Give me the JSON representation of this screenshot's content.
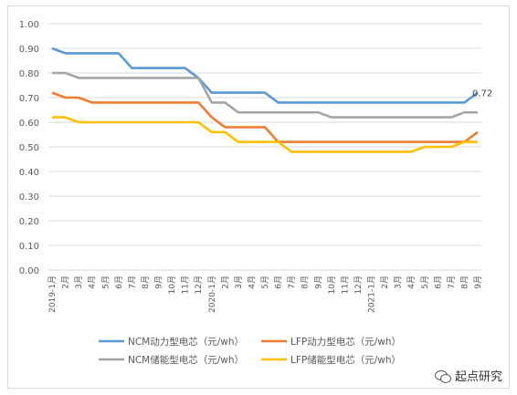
{
  "chart_data": {
    "type": "line",
    "title": "",
    "xlabel": "",
    "ylabel": "",
    "ylim": [
      0,
      1.0
    ],
    "yticks": [
      "0.00",
      "0.10",
      "0.20",
      "0.30",
      "0.40",
      "0.50",
      "0.60",
      "0.70",
      "0.80",
      "0.90",
      "1.00"
    ],
    "categories": [
      "2019-1月",
      "2月",
      "3月",
      "4月",
      "5月",
      "6月",
      "7月",
      "8月",
      "9月",
      "10月",
      "11月",
      "12月",
      "2020-1月",
      "2月",
      "3月",
      "4月",
      "5月",
      "6月",
      "7月",
      "8月",
      "9月",
      "10月",
      "11月",
      "12月",
      "2021-1月",
      "2月",
      "3月",
      "4月",
      "5月",
      "6月",
      "7月",
      "8月",
      "9月"
    ],
    "grid": true,
    "legend_position": "bottom",
    "series": [
      {
        "name": "NCM动力型电芯（元/wh）",
        "color": "#5b9bd5",
        "values": [
          0.9,
          0.88,
          0.88,
          0.88,
          0.88,
          0.88,
          0.82,
          0.82,
          0.82,
          0.82,
          0.82,
          0.78,
          0.72,
          0.72,
          0.72,
          0.72,
          0.72,
          0.68,
          0.68,
          0.68,
          0.68,
          0.68,
          0.68,
          0.68,
          0.68,
          0.68,
          0.68,
          0.68,
          0.68,
          0.68,
          0.68,
          0.68,
          0.72
        ]
      },
      {
        "name": "LFP动力型电芯（元/wh）",
        "color": "#ed7d31",
        "values": [
          0.72,
          0.7,
          0.7,
          0.68,
          0.68,
          0.68,
          0.68,
          0.68,
          0.68,
          0.68,
          0.68,
          0.68,
          0.62,
          0.58,
          0.58,
          0.58,
          0.58,
          0.52,
          0.52,
          0.52,
          0.52,
          0.52,
          0.52,
          0.52,
          0.52,
          0.52,
          0.52,
          0.52,
          0.52,
          0.52,
          0.52,
          0.52,
          0.56
        ]
      },
      {
        "name": "NCM储能型电芯（元/wh）",
        "color": "#a5a5a5",
        "values": [
          0.8,
          0.8,
          0.78,
          0.78,
          0.78,
          0.78,
          0.78,
          0.78,
          0.78,
          0.78,
          0.78,
          0.78,
          0.68,
          0.68,
          0.64,
          0.64,
          0.64,
          0.64,
          0.64,
          0.64,
          0.64,
          0.62,
          0.62,
          0.62,
          0.62,
          0.62,
          0.62,
          0.62,
          0.62,
          0.62,
          0.62,
          0.64,
          0.64
        ]
      },
      {
        "name": "LFP储能型电芯（元/wh）",
        "color": "#ffc000",
        "values": [
          0.62,
          0.62,
          0.6,
          0.6,
          0.6,
          0.6,
          0.6,
          0.6,
          0.6,
          0.6,
          0.6,
          0.6,
          0.56,
          0.56,
          0.52,
          0.52,
          0.52,
          0.52,
          0.48,
          0.48,
          0.48,
          0.48,
          0.48,
          0.48,
          0.48,
          0.48,
          0.48,
          0.48,
          0.5,
          0.5,
          0.5,
          0.52,
          0.52
        ]
      }
    ],
    "annotations": [
      {
        "series": 0,
        "index": 32,
        "text": "0.72"
      }
    ]
  },
  "watermark": {
    "text": "起点研究",
    "icon": "wechat-icon"
  }
}
